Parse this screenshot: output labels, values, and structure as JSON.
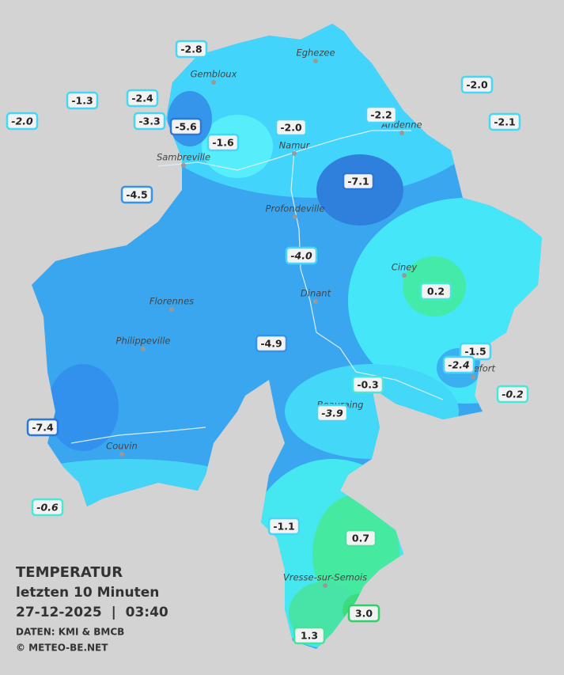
{
  "legend": {
    "title": "TEMPERATUR",
    "subtitle": "letzten 10 Minuten",
    "timestamp": "27-12-2025  |  03:40",
    "source": "DATEN: KMI & BMCB",
    "credit": "© METEO-BE.NET"
  },
  "cities": [
    "Eghezee",
    "Gembloux",
    "Andenne",
    "Namur",
    "Sambreville",
    "Profondeville",
    "Ciney",
    "Dinant",
    "Florennes",
    "Philippeville",
    "Rochefort",
    "Beauraing",
    "Couvin",
    "Vresse-sur-Semois"
  ],
  "stations": [
    {
      "value": "-2.8"
    },
    {
      "value": "-1.3"
    },
    {
      "value": "-2.0",
      "italic": true
    },
    {
      "value": "-2.4"
    },
    {
      "value": "-3.3"
    },
    {
      "value": "-5.6"
    },
    {
      "value": "-1.6"
    },
    {
      "value": "-2.0"
    },
    {
      "value": "-2.2"
    },
    {
      "value": "-2.0"
    },
    {
      "value": "-2.1"
    },
    {
      "value": "-7.1"
    },
    {
      "value": "-4.5"
    },
    {
      "value": "-4.0",
      "italic": true
    },
    {
      "value": "0.2"
    },
    {
      "value": "-4.9"
    },
    {
      "value": "-1.5"
    },
    {
      "value": "-2.4",
      "italic": true
    },
    {
      "value": "-0.3"
    },
    {
      "value": "-0.2",
      "italic": true
    },
    {
      "value": "-3.9",
      "italic": true
    },
    {
      "value": "-7.4"
    },
    {
      "value": "-0.6",
      "italic": true
    },
    {
      "value": "-1.1"
    },
    {
      "value": "0.7"
    },
    {
      "value": "3.0"
    },
    {
      "value": "1.3"
    }
  ]
}
